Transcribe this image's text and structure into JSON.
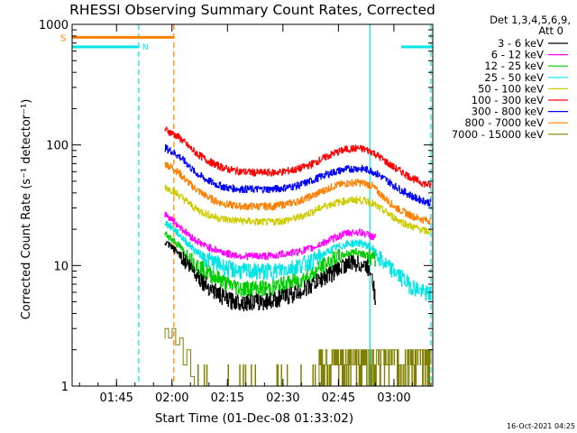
{
  "chart_data": {
    "type": "line",
    "title": "RHESSI Observing Summary Count Rates, Corrected",
    "xlabel": "Start Time (01-Dec-08 01:33:02)",
    "ylabel": "Corrected Count Rate (s⁻¹ detector⁻¹)",
    "y_scale": "log",
    "ylim": [
      1,
      1000
    ],
    "xlim_minutes_after_start": [
      0,
      97.5
    ],
    "x_ticks": [
      {
        "minute": 12,
        "label": "01:45"
      },
      {
        "minute": 27,
        "label": "02:00"
      },
      {
        "minute": 42,
        "label": "02:15"
      },
      {
        "minute": 57,
        "label": "02:30"
      },
      {
        "minute": 72,
        "label": "02:45"
      },
      {
        "minute": 87,
        "label": "03:00"
      }
    ],
    "y_ticks": [
      {
        "value": 1,
        "label": "1"
      },
      {
        "value": 10,
        "label": "10"
      },
      {
        "value": 100,
        "label": "100"
      },
      {
        "value": 1000,
        "label": "1000"
      }
    ],
    "legend_header": [
      "Det 1,3,4,5,6,9,",
      "Att 0"
    ],
    "timestamp": "16-Oct-2021 04:25",
    "series": [
      {
        "name": "3 - 6 keV",
        "color": "#000000",
        "x": [
          25,
          27,
          29,
          31,
          33,
          36,
          39,
          42,
          46,
          50,
          54,
          57,
          61,
          65,
          68,
          71,
          73,
          75,
          77,
          79,
          80,
          81,
          82
        ],
        "y": [
          15.5,
          14,
          12.5,
          10.5,
          9,
          7,
          6,
          5.2,
          5,
          5,
          5.2,
          5.5,
          6,
          7,
          8,
          9,
          10,
          10.5,
          10.5,
          10,
          9.5,
          9,
          5
        ]
      },
      {
        "name": "6 - 12 keV",
        "color": "#ff00ff",
        "x": [
          25,
          27,
          29,
          31,
          33,
          36,
          39,
          42,
          46,
          50,
          54,
          57,
          61,
          65,
          68,
          71,
          74,
          77,
          79,
          80,
          81,
          82
        ],
        "y": [
          27,
          24,
          21,
          18.5,
          16.5,
          14.5,
          13.5,
          12.5,
          12,
          12,
          12,
          12.5,
          13,
          14,
          15.5,
          17,
          18.5,
          19,
          18.5,
          18,
          17.5,
          17
        ]
      },
      {
        "name": "12 - 25 keV",
        "color": "#00cc00",
        "x": [
          25,
          27,
          29,
          31,
          33,
          36,
          39,
          42,
          46,
          50,
          54,
          57,
          61,
          65,
          68,
          71,
          74,
          77,
          79,
          80,
          81,
          82
        ],
        "y": [
          18.5,
          16.5,
          14.5,
          12,
          10.5,
          9,
          8,
          7,
          6.5,
          6.5,
          6.5,
          7,
          7.5,
          8.5,
          10,
          11.5,
          12.5,
          13,
          12.5,
          12,
          11.5,
          11
        ]
      },
      {
        "name": "25 - 50 keV",
        "color": "#00e5e5",
        "x": [
          25,
          27,
          29,
          31,
          33,
          36,
          39,
          42,
          46,
          50,
          54,
          57,
          61,
          65,
          68,
          71,
          74,
          77,
          79,
          80,
          81,
          83,
          85,
          87,
          89,
          91,
          93,
          95,
          97
        ],
        "y": [
          23,
          20.5,
          18,
          15.5,
          13.5,
          11.5,
          10.5,
          9.5,
          9,
          9,
          9,
          9.3,
          10,
          11,
          12.5,
          14,
          15,
          15.5,
          15,
          14.5,
          14,
          11.5,
          10,
          9,
          8,
          7,
          6.5,
          6,
          5.8
        ]
      },
      {
        "name": "50 - 100 keV",
        "color": "#cccc00",
        "x": [
          25,
          27,
          29,
          31,
          33,
          36,
          39,
          42,
          46,
          50,
          54,
          57,
          61,
          65,
          68,
          71,
          74,
          77,
          79,
          80,
          81,
          83,
          85,
          87,
          89,
          91,
          93,
          95,
          97
        ],
        "y": [
          45,
          42,
          38,
          34,
          30,
          27,
          25,
          24,
          23.5,
          23,
          23,
          23.5,
          25,
          28,
          31,
          33,
          34.5,
          35,
          34.5,
          34,
          33,
          30,
          27.5,
          25,
          23,
          21.5,
          20.5,
          19.5,
          19
        ]
      },
      {
        "name": "100 - 300 keV",
        "color": "#ff0000",
        "x": [
          25,
          27,
          29,
          31,
          33,
          36,
          39,
          42,
          46,
          50,
          54,
          57,
          61,
          65,
          68,
          71,
          74,
          77,
          79,
          80,
          81,
          83,
          85,
          87,
          89,
          91,
          93,
          95,
          97
        ],
        "y": [
          135,
          125,
          115,
          100,
          88,
          76,
          68,
          63,
          60,
          59,
          59,
          60,
          63,
          70,
          78,
          86,
          92,
          94,
          92,
          90,
          88,
          80,
          72,
          65,
          60,
          55,
          51,
          48,
          46
        ]
      },
      {
        "name": "300 - 800 keV",
        "color": "#0000ff",
        "x": [
          25,
          27,
          29,
          31,
          33,
          36,
          39,
          42,
          46,
          50,
          54,
          57,
          61,
          65,
          68,
          71,
          74,
          77,
          79,
          80,
          81,
          83,
          85,
          87,
          89,
          91,
          93,
          95,
          97
        ],
        "y": [
          95,
          88,
          80,
          70,
          60,
          52,
          47,
          44,
          43,
          43,
          43,
          44,
          46,
          51,
          56,
          60,
          63,
          64,
          63,
          62,
          61,
          56,
          51,
          46,
          42,
          39,
          36,
          34.5,
          33
        ]
      },
      {
        "name": "800 - 7000 keV",
        "color": "#ff8000",
        "x": [
          25,
          27,
          29,
          31,
          33,
          36,
          39,
          42,
          46,
          50,
          54,
          57,
          61,
          65,
          68,
          71,
          74,
          77,
          79,
          80,
          81,
          83,
          85,
          87,
          89,
          91,
          93,
          95,
          97
        ],
        "y": [
          70,
          65,
          58,
          50,
          44,
          38,
          34,
          32,
          31,
          31,
          31,
          32,
          34,
          38,
          42,
          46,
          48,
          49,
          48,
          47,
          46,
          40,
          35,
          31,
          28.5,
          26.5,
          25,
          24,
          23.5
        ]
      },
      {
        "name": "7000 - 15000 keV",
        "color": "#808000",
        "x": [
          25,
          26,
          27,
          28,
          29,
          30,
          31,
          32,
          33,
          35,
          40,
          50,
          60,
          66,
          67,
          68,
          70,
          72,
          74,
          76,
          78,
          80,
          82,
          84,
          86,
          88,
          90,
          92,
          94,
          96,
          97
        ],
        "y": [
          2.5,
          3,
          2.5,
          3,
          2.2,
          2.5,
          1.5,
          2,
          1.2,
          1,
          1,
          1,
          1,
          1,
          1.6,
          2,
          1.5,
          2,
          1.6,
          2,
          1.5,
          2,
          1.6,
          2,
          1.5,
          2,
          1.6,
          2,
          1.5,
          2,
          1.5
        ]
      }
    ],
    "attenuator_state": {
      "label": "S",
      "color": "#ff8000",
      "x_range": [
        0,
        27.5
      ],
      "y": 780
    },
    "night_state": {
      "label": "N",
      "color": "#00e5e5",
      "segments": [
        [
          0,
          18
        ],
        [
          89,
          97.5
        ]
      ],
      "y": 650
    },
    "vertical_markers": [
      {
        "minute": 18,
        "color": "#00e5e5",
        "style": "dashed"
      },
      {
        "minute": 27.5,
        "color": "#ff8000",
        "style": "dashed"
      },
      {
        "minute": 80.5,
        "color": "#00e5e5",
        "style": "solid"
      },
      {
        "minute": 97,
        "color": "#00e5e5",
        "style": "dashed"
      }
    ]
  }
}
